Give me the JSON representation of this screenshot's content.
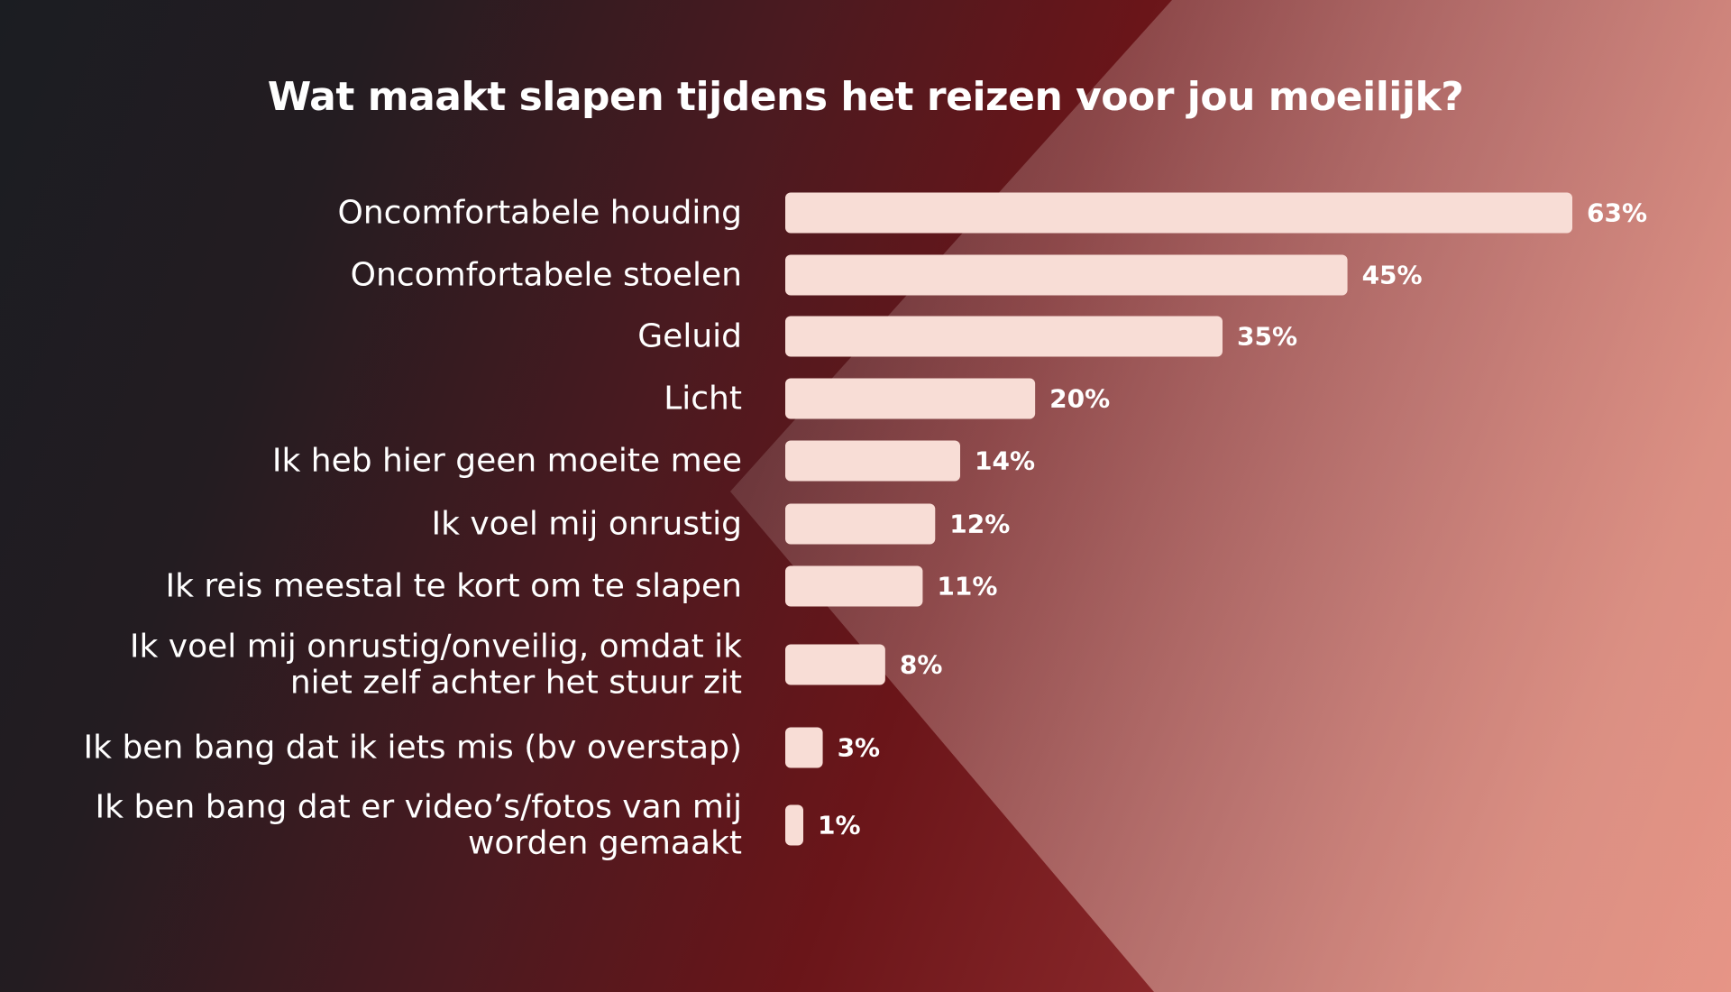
{
  "colors": {
    "bar": "#f8ddd6",
    "text": "#ffffff",
    "bg_dark": "#1b1d22",
    "bg_red": "#6a1519",
    "bg_accent": "#c8453a"
  },
  "chart_data": {
    "type": "bar",
    "orientation": "horizontal",
    "title": "Wat maakt slapen tijdens het reizen voor jou moeilijk?",
    "categories": [
      [
        "Oncomfortabele houding"
      ],
      [
        "Oncomfortabele stoelen"
      ],
      [
        "Geluid"
      ],
      [
        "Licht"
      ],
      [
        "Ik heb hier geen moeite mee"
      ],
      [
        "Ik voel mij onrustig"
      ],
      [
        "Ik reis meestal te kort om te slapen"
      ],
      [
        "Ik voel mij onrustig/onveilig, omdat ik",
        "niet zelf achter het stuur zit"
      ],
      [
        "Ik ben bang dat ik iets mis (bv overstap)"
      ],
      [
        "Ik ben bang dat er video’s/fotos van mij",
        "worden gemaakt"
      ]
    ],
    "values": [
      63,
      45,
      35,
      20,
      14,
      12,
      11,
      8,
      3,
      1
    ],
    "value_labels": [
      "63%",
      "45%",
      "35%",
      "20%",
      "14%",
      "12%",
      "11%",
      "8%",
      "3%",
      "1%"
    ],
    "unit": "%",
    "xlim": [
      0,
      63
    ],
    "grid": false,
    "legend": "none"
  }
}
